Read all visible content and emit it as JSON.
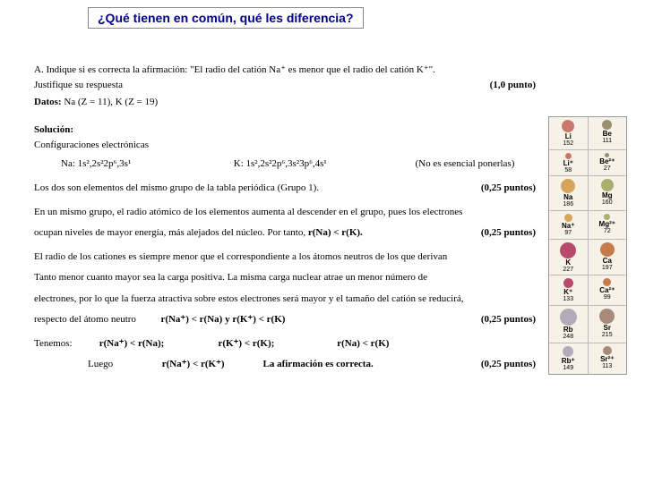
{
  "header": {
    "title": "¿Qué tienen en común, qué les diferencia?",
    "title_color": "#000088",
    "border_color": "#888888"
  },
  "question": {
    "letter": "A.",
    "text": "Indique si es correcta la afirmación: \"El radio del catión Na⁺ es menor que el radio del catión K⁺\".",
    "justify": "Justifique su respuesta",
    "points": "(1,0 punto)",
    "datos_label": "Datos:",
    "datos_text": "Na (Z = 11), K (Z = 19)"
  },
  "solution": {
    "heading": "Solución:",
    "config_head": "Configuraciones electrónicas",
    "na_config": "Na: 1s²,2s²2p⁶,3s¹",
    "k_config": "K: 1s²,2s²2p⁶,3s²3p⁶,4s¹",
    "config_note": "(No es esencial ponerlas)",
    "line_group": "Los dos son elementos del mismo grupo de la tabla periódica (Grupo 1).",
    "pts025": "(0,25 puntos)",
    "line_group2a": "En un mismo grupo, el radio atómico de los elementos aumenta al descender en el grupo, pues los electrones",
    "line_group2b": "ocupan niveles de mayor energía, más alejados del núcleo. Por tanto,",
    "rel_rNa_rK": "r(Na) < r(K).",
    "line_cation1": "El radio de los cationes es siempre menor que el correspondiente a los átomos neutros de los que derivan",
    "line_cation2": "Tanto menor cuanto mayor sea la carga positiva. La misma carga nuclear atrae un menor número de",
    "line_cation3": "electrones, por lo que la fuerza atractiva sobre estos electrones será mayor y el tamaño del catión se reducirá,",
    "line_cation4": "respecto del átomo neutro",
    "rel_pair": "r(Na⁺) < r(Na) y r(K⁺) < r(K)",
    "tenemos": "Tenemos:",
    "r1": "r(Na⁺) < r(Na);",
    "r2": "r(K⁺) < r(K);",
    "r3": "r(Na) < r(K)",
    "luego": "Luego",
    "final_rel": "r(Na⁺) < r(K⁺)",
    "final_stmt": "La afirmación es correcta."
  },
  "ion_table": {
    "bg": "#f7f2e8",
    "rows": [
      {
        "l": {
          "sym": "Li",
          "val": "152",
          "color": "#c9786b",
          "d": 14
        },
        "r": {
          "sym": "Be",
          "val": "111",
          "color": "#9a9070",
          "d": 11
        }
      },
      {
        "l": {
          "sym": "Li⁺",
          "val": "58",
          "color": "#c9786b",
          "d": 7
        },
        "r": {
          "sym": "Be²⁺",
          "val": "27",
          "color": "#9a9070",
          "d": 5
        }
      },
      {
        "l": {
          "sym": "Na",
          "val": "186",
          "color": "#d6a45a",
          "d": 16
        },
        "r": {
          "sym": "Mg",
          "val": "160",
          "color": "#a8b070",
          "d": 14
        }
      },
      {
        "l": {
          "sym": "Na⁺",
          "val": "97",
          "color": "#d6a45a",
          "d": 9
        },
        "r": {
          "sym": "Mg²⁺",
          "val": "72",
          "color": "#a8b070",
          "d": 7
        }
      },
      {
        "l": {
          "sym": "K",
          "val": "227",
          "color": "#b84a6c",
          "d": 18
        },
        "r": {
          "sym": "Ca",
          "val": "197",
          "color": "#c77a4a",
          "d": 16
        }
      },
      {
        "l": {
          "sym": "K⁺",
          "val": "133",
          "color": "#b84a6c",
          "d": 11
        },
        "r": {
          "sym": "Ca²⁺",
          "val": "99",
          "color": "#c77a4a",
          "d": 9
        }
      },
      {
        "l": {
          "sym": "Rb",
          "val": "248",
          "color": "#b5aaba",
          "d": 19
        },
        "r": {
          "sym": "Sr",
          "val": "215",
          "color": "#a88a7a",
          "d": 17
        }
      },
      {
        "l": {
          "sym": "Rb⁺",
          "val": "149",
          "color": "#b5aaba",
          "d": 12
        },
        "r": {
          "sym": "Sr²⁺",
          "val": "113",
          "color": "#a88a7a",
          "d": 10
        }
      }
    ]
  }
}
